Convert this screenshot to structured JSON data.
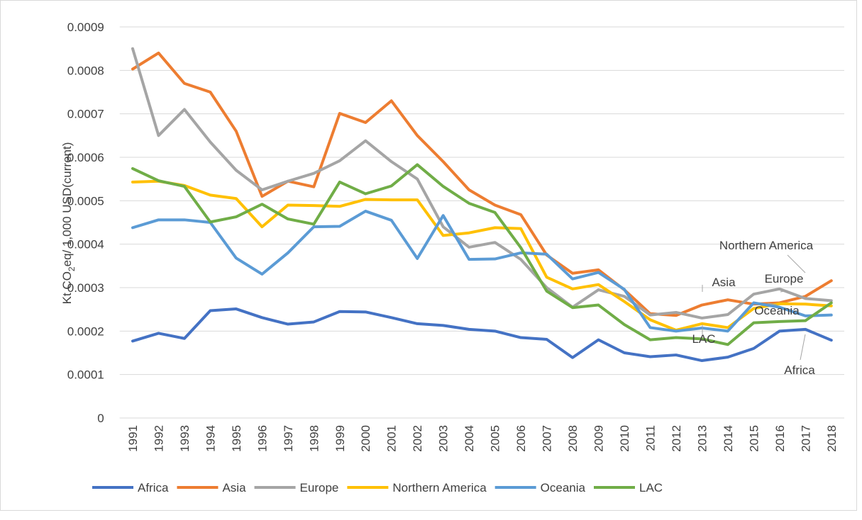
{
  "chart_data": {
    "type": "line",
    "y_label": [
      "Kt CO",
      "2",
      "eq/ 1,000 USD(current)"
    ],
    "categories": [
      "1991",
      "1992",
      "1993",
      "1994",
      "1995",
      "1996",
      "1997",
      "1998",
      "1999",
      "2000",
      "2001",
      "2002",
      "2003",
      "2004",
      "2005",
      "2006",
      "2007",
      "2008",
      "2009",
      "2010",
      "2011",
      "2012",
      "2013",
      "2014",
      "2015",
      "2016",
      "2017",
      "2018"
    ],
    "series": [
      {
        "name": "Africa",
        "color": "#4472c4",
        "values": [
          0.000177,
          0.000195,
          0.000183,
          0.000247,
          0.000251,
          0.000231,
          0.000216,
          0.000221,
          0.000245,
          0.000244,
          0.000231,
          0.000217,
          0.000213,
          0.000204,
          0.0002,
          0.000185,
          0.000181,
          0.000139,
          0.00018,
          0.00015,
          0.000141,
          0.000145,
          0.000132,
          0.00014,
          0.00016,
          0.0002,
          0.000204,
          0.000179
        ]
      },
      {
        "name": "Asia",
        "color": "#ed7d31",
        "values": [
          0.000803,
          0.00084,
          0.00077,
          0.00075,
          0.00066,
          0.00051,
          0.000545,
          0.000532,
          0.000701,
          0.00068,
          0.00073,
          0.00065,
          0.00059,
          0.000525,
          0.00049,
          0.000468,
          0.000375,
          0.000333,
          0.000341,
          0.000295,
          0.00024,
          0.000236,
          0.00026,
          0.000272,
          0.000262,
          0.000265,
          0.00028,
          0.000316
        ]
      },
      {
        "name": "Europe",
        "color": "#a5a5a5",
        "values": [
          0.00085,
          0.00065,
          0.00071,
          0.000635,
          0.00057,
          0.000525,
          0.000545,
          0.000563,
          0.000592,
          0.000638,
          0.00059,
          0.00055,
          0.00044,
          0.000393,
          0.000404,
          0.000365,
          0.0003,
          0.000255,
          0.000295,
          0.00028,
          0.000237,
          0.000243,
          0.00023,
          0.000238,
          0.000285,
          0.000297,
          0.000275,
          0.00027
        ]
      },
      {
        "name": "Northern America",
        "color": "#ffc000",
        "values": [
          0.000543,
          0.000545,
          0.000535,
          0.000513,
          0.000505,
          0.00044,
          0.00049,
          0.000489,
          0.000487,
          0.000503,
          0.000502,
          0.000502,
          0.00042,
          0.000426,
          0.000438,
          0.000436,
          0.000324,
          0.000297,
          0.000307,
          0.000268,
          0.000226,
          0.000202,
          0.000217,
          0.000208,
          0.000252,
          0.000263,
          0.000262,
          0.000258
        ]
      },
      {
        "name": "Oceania",
        "color": "#5b9bd5",
        "values": [
          0.000438,
          0.000456,
          0.000456,
          0.00045,
          0.000368,
          0.000331,
          0.00038,
          0.00044,
          0.000441,
          0.000476,
          0.000455,
          0.000367,
          0.000466,
          0.000365,
          0.000366,
          0.00038,
          0.000377,
          0.00032,
          0.000335,
          0.000296,
          0.000208,
          0.0002,
          0.000207,
          0.0002,
          0.000265,
          0.000255,
          0.000235,
          0.000237
        ]
      },
      {
        "name": "LAC",
        "color": "#70ad47",
        "values": [
          0.000574,
          0.000546,
          0.000533,
          0.000451,
          0.000463,
          0.000492,
          0.000458,
          0.000446,
          0.000543,
          0.000516,
          0.000534,
          0.000583,
          0.000533,
          0.000494,
          0.000473,
          0.000392,
          0.000292,
          0.000254,
          0.00026,
          0.000215,
          0.00018,
          0.000185,
          0.000182,
          0.000169,
          0.000219,
          0.000222,
          0.000224,
          0.000265
        ]
      }
    ],
    "annotations": [
      "Northern America",
      "Asia",
      "Europe",
      "Oceania",
      "LAC",
      "Africa"
    ],
    "ylim": [
      0,
      0.0009
    ],
    "yticks": [
      0,
      0.0001,
      0.0002,
      0.0003,
      0.0004,
      0.0005,
      0.0006,
      0.0007,
      0.0008,
      0.0009
    ],
    "grid": true,
    "legend": "bottom"
  }
}
